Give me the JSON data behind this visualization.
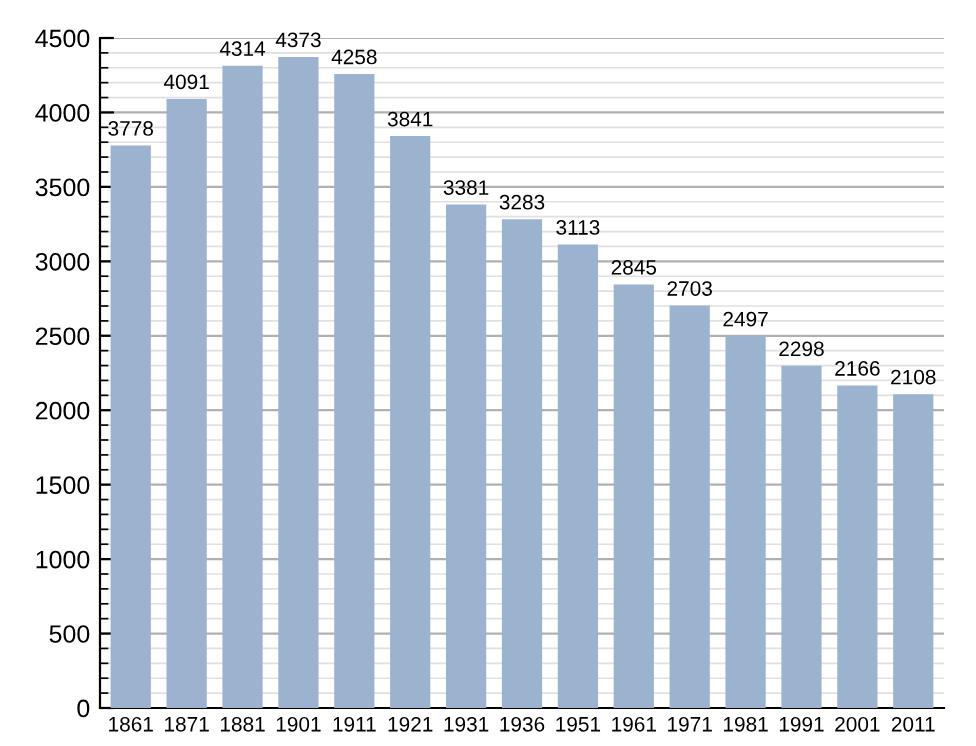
{
  "chart_data": {
    "type": "bar",
    "categories": [
      "1861",
      "1871",
      "1881",
      "1901",
      "1911",
      "1921",
      "1931",
      "1936",
      "1951",
      "1961",
      "1971",
      "1981",
      "1991",
      "2001",
      "2011"
    ],
    "values": [
      3778,
      4091,
      4314,
      4373,
      4258,
      3841,
      3381,
      3283,
      3113,
      2845,
      2703,
      2497,
      2298,
      2166,
      2108
    ],
    "color": "#9bb3cf",
    "ylim": [
      0,
      4500
    ],
    "yticks": [
      0,
      500,
      1000,
      1500,
      2000,
      2500,
      3000,
      3500,
      4000,
      4500
    ],
    "grid": "y",
    "data_labels": true
  }
}
